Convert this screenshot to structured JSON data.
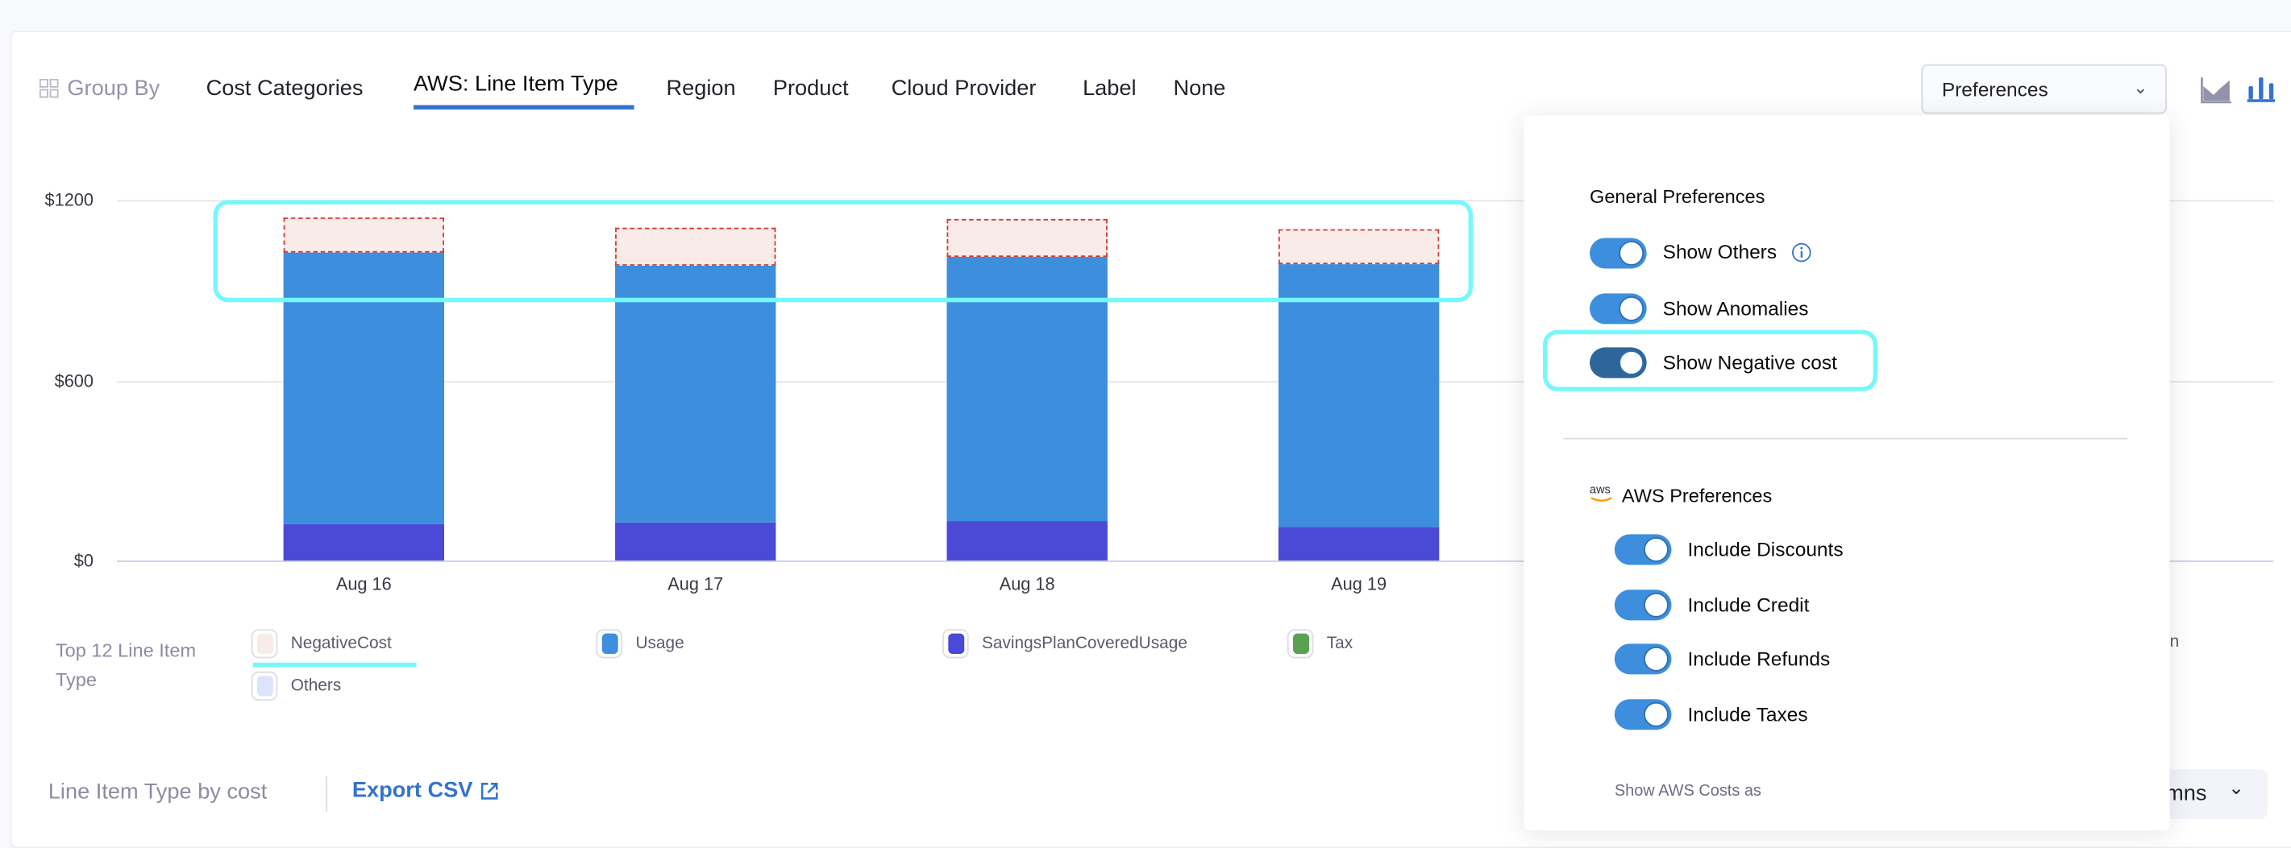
{
  "group_by": {
    "label": "Group By",
    "tabs": [
      "Cost Categories",
      "AWS: Line Item Type",
      "Region",
      "Product",
      "Cloud Provider",
      "Label",
      "None"
    ],
    "active_tab": "AWS: Line Item Type"
  },
  "preferences_select": {
    "label": "Preferences"
  },
  "chart_toggle": {
    "options": [
      "area-chart-icon",
      "bar-chart-icon"
    ],
    "active": "bar-chart-icon"
  },
  "chart_data": {
    "type": "bar",
    "stacked": true,
    "categories": [
      "Aug 16",
      "Aug 17",
      "Aug 18",
      "Aug 19"
    ],
    "yticks": [
      "$1200",
      "$600",
      "$0"
    ],
    "ylim": [
      0,
      1200
    ],
    "grid": true,
    "series": [
      {
        "name": "SavingsPlanCoveredUsage",
        "color": "#4a4ad6",
        "values": [
          121,
          126,
          131,
          112
        ]
      },
      {
        "name": "Usage",
        "color": "#3d8fdd",
        "values": [
          904,
          855,
          879,
          874
        ]
      },
      {
        "name": "NegativeCost",
        "color": "#f9ebe8",
        "values": [
          117,
          126,
          127,
          117
        ]
      }
    ]
  },
  "legend": {
    "title": "Top 12 Line Item Type",
    "items": [
      {
        "label": "NegativeCost",
        "color": "#f9ebe8"
      },
      {
        "label": "Usage",
        "color": "#3d8fdd"
      },
      {
        "label": "SavingsPlanCoveredUsage",
        "color": "#4a4ad6"
      },
      {
        "label": "Tax",
        "color": "#5ba152"
      },
      {
        "label": "Others",
        "color": "#dde3fb"
      }
    ],
    "truncated_item_fragment": "n"
  },
  "table_header": {
    "title": "Line Item Type by cost",
    "export": "Export CSV",
    "columns_fragment": "mns"
  },
  "popup": {
    "general_title": "General Preferences",
    "general": [
      {
        "label": "Show Others",
        "on": true,
        "info": true
      },
      {
        "label": "Show Anomalies",
        "on": true
      },
      {
        "label": "Show Negative cost",
        "on": true
      }
    ],
    "aws_logo": "aws",
    "aws_title": "AWS Preferences",
    "aws": [
      {
        "label": "Include Discounts",
        "on": true
      },
      {
        "label": "Include Credit",
        "on": true
      },
      {
        "label": "Include Refunds",
        "on": true
      },
      {
        "label": "Include Taxes",
        "on": true
      }
    ],
    "show_costs_as": "Show AWS Costs as"
  }
}
